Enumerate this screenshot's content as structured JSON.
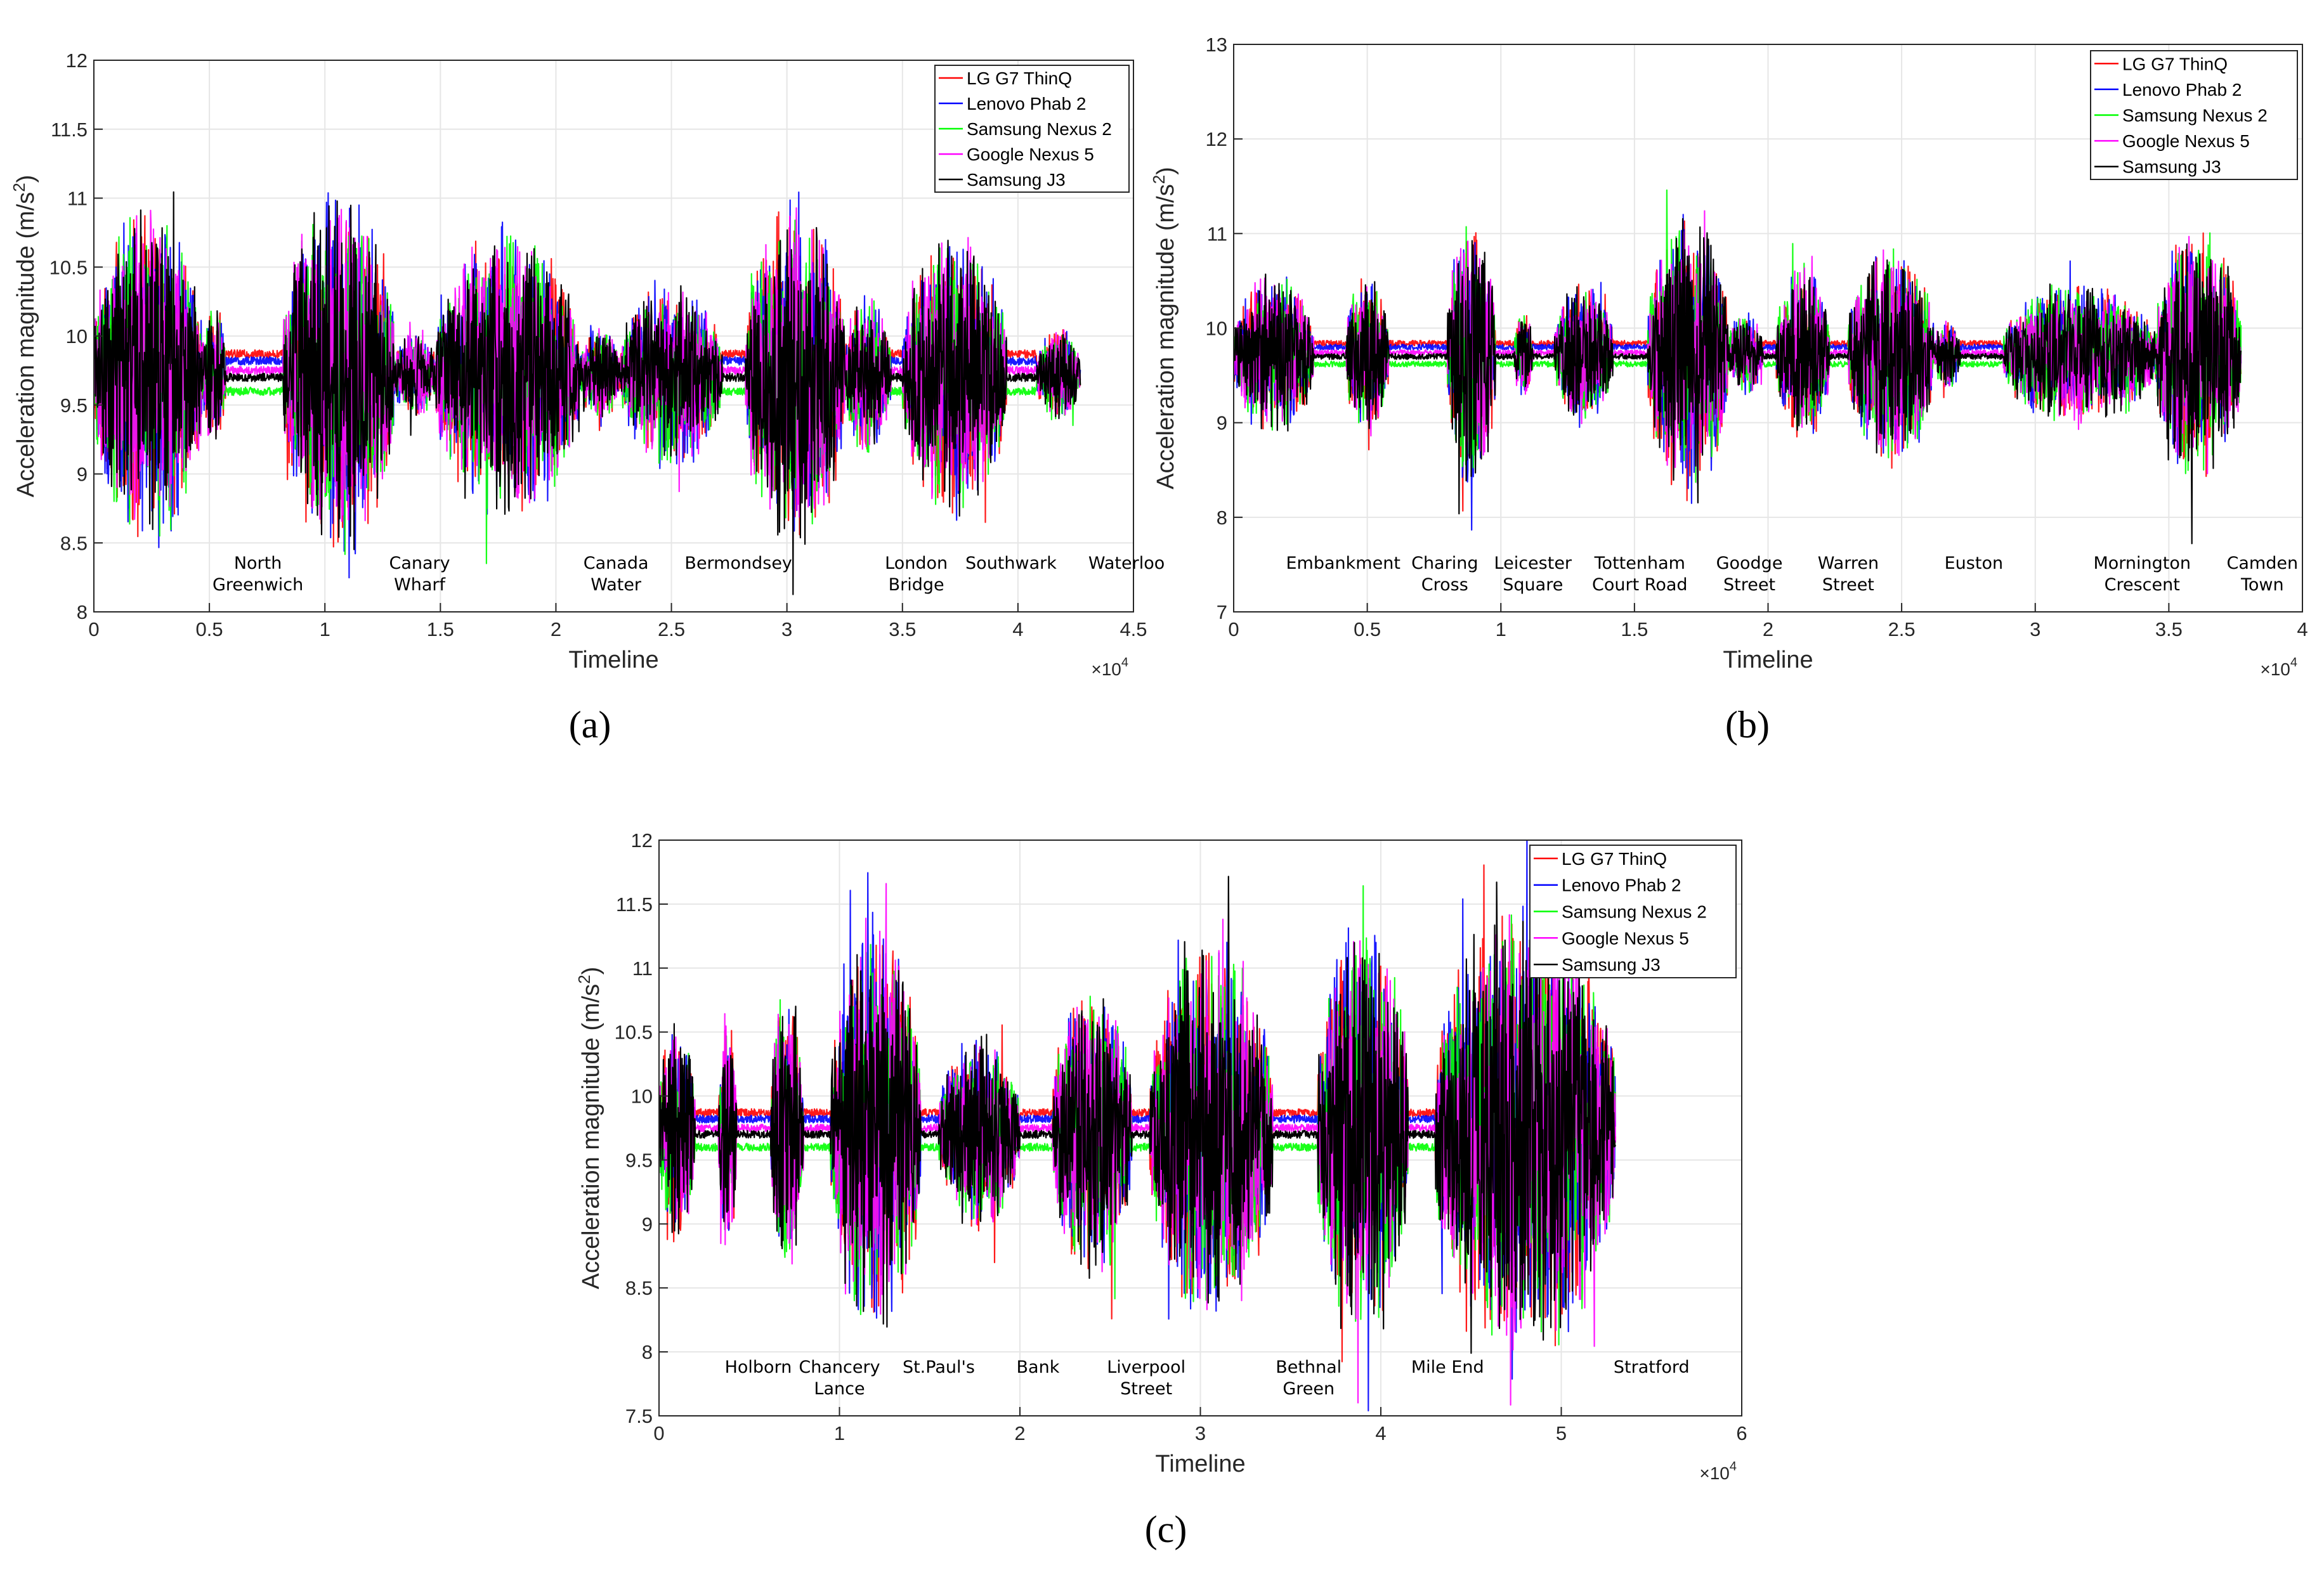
{
  "series_colors": {
    "LG G7 ThinQ": "#ff0000",
    "Lenovo Phab 2": "#0000ff",
    "Samsung Nexus 2": "#00ff00",
    "Google Nexus 5": "#ff00ff",
    "Samsung J3": "#000000"
  },
  "chart_data": [
    {
      "id": "a",
      "panel_label": "(a)",
      "type": "line",
      "xlabel": "Timeline",
      "ylabel": "Acceleration magnitude (m/s²)",
      "ylabel_base": "Acceleration magnitude (m/s",
      "ylabel_sup": "2",
      "ylabel_close": ")",
      "x_exponent_base": "×10",
      "x_exponent": "4",
      "xlim": [
        0,
        4.5
      ],
      "ylim": [
        8,
        12
      ],
      "xticks": [
        0,
        0.5,
        1,
        1.5,
        2,
        2.5,
        3,
        3.5,
        4,
        4.5
      ],
      "xtick_labels": [
        "0",
        "0.5",
        "1",
        "1.5",
        "2",
        "2.5",
        "3",
        "3.5",
        "4",
        "4.5"
      ],
      "yticks": [
        8,
        8.5,
        9,
        9.5,
        10,
        10.5,
        11,
        11.5,
        12
      ],
      "ytick_labels": [
        "8",
        "8.5",
        "9",
        "9.5",
        "10",
        "10.5",
        "11",
        "11.5",
        "12"
      ],
      "legend_position": "top-right",
      "series": [
        {
          "name": "LG G7 ThinQ",
          "stop_level": 9.87
        },
        {
          "name": "Lenovo Phab 2",
          "stop_level": 9.82
        },
        {
          "name": "Samsung Nexus 2",
          "stop_level": 9.6
        },
        {
          "name": "Google Nexus 5",
          "stop_level": 9.75
        },
        {
          "name": "Samsung J3",
          "stop_level": 9.7
        }
      ],
      "segments": [
        {
          "start": 0.0,
          "end": 0.47,
          "amp": 1.3
        },
        {
          "start": 0.47,
          "end": 0.57,
          "amp": 0.55
        },
        {
          "start": 0.82,
          "end": 1.3,
          "amp": 1.4
        },
        {
          "start": 1.3,
          "end": 1.48,
          "amp": 0.35
        },
        {
          "start": 1.48,
          "end": 2.1,
          "amp": 1.1
        },
        {
          "start": 2.1,
          "end": 2.28,
          "amp": 0.35
        },
        {
          "start": 2.28,
          "end": 2.72,
          "amp": 0.7
        },
        {
          "start": 2.82,
          "end": 3.25,
          "amp": 1.3
        },
        {
          "start": 3.25,
          "end": 3.45,
          "amp": 0.6
        },
        {
          "start": 3.5,
          "end": 3.95,
          "amp": 1.1
        },
        {
          "start": 4.08,
          "end": 4.27,
          "amp": 0.35
        }
      ],
      "end_x": 4.27,
      "stations": [
        {
          "lines": [
            "North",
            "Greenwich"
          ],
          "x": 0.71
        },
        {
          "lines": [
            "Canary",
            "Wharf"
          ],
          "x": 1.41
        },
        {
          "lines": [
            "Canada",
            "Water"
          ],
          "x": 2.26
        },
        {
          "lines": [
            "Bermondsey"
          ],
          "x": 2.79
        },
        {
          "lines": [
            "London",
            "Bridge"
          ],
          "x": 3.56
        },
        {
          "lines": [
            "Southwark"
          ],
          "x": 3.97
        },
        {
          "lines": [
            "Waterloo"
          ],
          "x": 4.47
        }
      ]
    },
    {
      "id": "b",
      "panel_label": "(b)",
      "type": "line",
      "xlabel": "Timeline",
      "ylabel": "Acceleration magnitude (m/s²)",
      "ylabel_base": "Acceleration magnitude (m/s",
      "ylabel_sup": "2",
      "ylabel_close": ")",
      "x_exponent_base": "×10",
      "x_exponent": "4",
      "xlim": [
        0,
        4
      ],
      "ylim": [
        7,
        13
      ],
      "xticks": [
        0,
        0.5,
        1,
        1.5,
        2,
        2.5,
        3,
        3.5,
        4
      ],
      "xtick_labels": [
        "0",
        "0.5",
        "1",
        "1.5",
        "2",
        "2.5",
        "3",
        "3.5",
        "4"
      ],
      "yticks": [
        7,
        8,
        9,
        10,
        11,
        12,
        13
      ],
      "ytick_labels": [
        "7",
        "8",
        "9",
        "10",
        "11",
        "12",
        "13"
      ],
      "legend_position": "top-right",
      "series": [
        {
          "name": "LG G7 ThinQ",
          "stop_level": 9.84
        },
        {
          "name": "Lenovo Phab 2",
          "stop_level": 9.8
        },
        {
          "name": "Samsung Nexus 2",
          "stop_level": 9.62
        },
        {
          "name": "Google Nexus 5",
          "stop_level": 9.74
        },
        {
          "name": "Samsung J3",
          "stop_level": 9.7
        }
      ],
      "segments": [
        {
          "start": 0.0,
          "end": 0.3,
          "amp": 0.9
        },
        {
          "start": 0.42,
          "end": 0.58,
          "amp": 0.9
        },
        {
          "start": 0.8,
          "end": 0.98,
          "amp": 1.5
        },
        {
          "start": 1.05,
          "end": 1.12,
          "amp": 0.5
        },
        {
          "start": 1.2,
          "end": 1.42,
          "amp": 0.8
        },
        {
          "start": 1.55,
          "end": 1.85,
          "amp": 1.6
        },
        {
          "start": 1.85,
          "end": 1.98,
          "amp": 0.5
        },
        {
          "start": 2.03,
          "end": 2.23,
          "amp": 1.0
        },
        {
          "start": 2.3,
          "end": 2.62,
          "amp": 1.2
        },
        {
          "start": 2.62,
          "end": 2.72,
          "amp": 0.4
        },
        {
          "start": 2.88,
          "end": 3.45,
          "amp": 0.8
        },
        {
          "start": 3.45,
          "end": 3.77,
          "amp": 1.4
        }
      ],
      "end_x": 3.77,
      "stations": [
        {
          "lines": [
            "Embankment"
          ],
          "x": 0.41
        },
        {
          "lines": [
            "Charing",
            "Cross"
          ],
          "x": 0.79
        },
        {
          "lines": [
            "Leicester",
            "Square"
          ],
          "x": 1.12
        },
        {
          "lines": [
            "Tottenham",
            "Court Road"
          ],
          "x": 1.52
        },
        {
          "lines": [
            "Goodge",
            "Street"
          ],
          "x": 1.93
        },
        {
          "lines": [
            "Warren",
            "Street"
          ],
          "x": 2.3
        },
        {
          "lines": [
            "Euston"
          ],
          "x": 2.77
        },
        {
          "lines": [
            "Mornington",
            "Crescent"
          ],
          "x": 3.4
        },
        {
          "lines": [
            "Camden",
            "Town"
          ],
          "x": 3.85
        }
      ]
    },
    {
      "id": "c",
      "panel_label": "(c)",
      "type": "line",
      "xlabel": "Timeline",
      "ylabel": "Acceleration magnitude (m/s²)",
      "ylabel_base": "Acceleration magnitude (m/s",
      "ylabel_sup": "2",
      "ylabel_close": ")",
      "x_exponent_base": "×10",
      "x_exponent": "4",
      "xlim": [
        0,
        6
      ],
      "ylim": [
        7.5,
        12
      ],
      "xticks": [
        0,
        1,
        2,
        3,
        4,
        5,
        6
      ],
      "xtick_labels": [
        "0",
        "1",
        "2",
        "3",
        "4",
        "5",
        "6"
      ],
      "yticks": [
        7.5,
        8,
        8.5,
        9,
        9.5,
        10,
        10.5,
        11,
        11.5,
        12
      ],
      "ytick_labels": [
        "7.5",
        "8",
        "8.5",
        "9",
        "9.5",
        "10",
        "10.5",
        "11",
        "11.5",
        "12"
      ],
      "legend_position": "top-right",
      "series": [
        {
          "name": "LG G7 ThinQ",
          "stop_level": 9.87
        },
        {
          "name": "Lenovo Phab 2",
          "stop_level": 9.82
        },
        {
          "name": "Samsung Nexus 2",
          "stop_level": 9.6
        },
        {
          "name": "Google Nexus 5",
          "stop_level": 9.75
        },
        {
          "name": "Samsung J3",
          "stop_level": 9.7
        }
      ],
      "segments": [
        {
          "start": 0.0,
          "end": 0.2,
          "amp": 0.9
        },
        {
          "start": 0.33,
          "end": 0.43,
          "amp": 1.0
        },
        {
          "start": 0.62,
          "end": 0.8,
          "amp": 1.2
        },
        {
          "start": 0.95,
          "end": 1.45,
          "amp": 1.7
        },
        {
          "start": 1.55,
          "end": 2.0,
          "amp": 0.8
        },
        {
          "start": 2.18,
          "end": 2.62,
          "amp": 1.2
        },
        {
          "start": 2.72,
          "end": 3.4,
          "amp": 1.6
        },
        {
          "start": 3.65,
          "end": 4.15,
          "amp": 1.8
        },
        {
          "start": 4.3,
          "end": 5.3,
          "amp": 1.9
        }
      ],
      "end_x": 5.3,
      "stations": [
        {
          "lines": [
            "Holborn"
          ],
          "x": 0.55
        },
        {
          "lines": [
            "Chancery",
            "Lance"
          ],
          "x": 1.0
        },
        {
          "lines": [
            "St.Paul's"
          ],
          "x": 1.55
        },
        {
          "lines": [
            "Bank"
          ],
          "x": 2.1
        },
        {
          "lines": [
            "Liverpool",
            "Street"
          ],
          "x": 2.7
        },
        {
          "lines": [
            "Bethnal",
            "Green"
          ],
          "x": 3.6
        },
        {
          "lines": [
            "Mile End"
          ],
          "x": 4.37
        },
        {
          "lines": [
            "Stratford"
          ],
          "x": 5.5
        }
      ]
    }
  ]
}
